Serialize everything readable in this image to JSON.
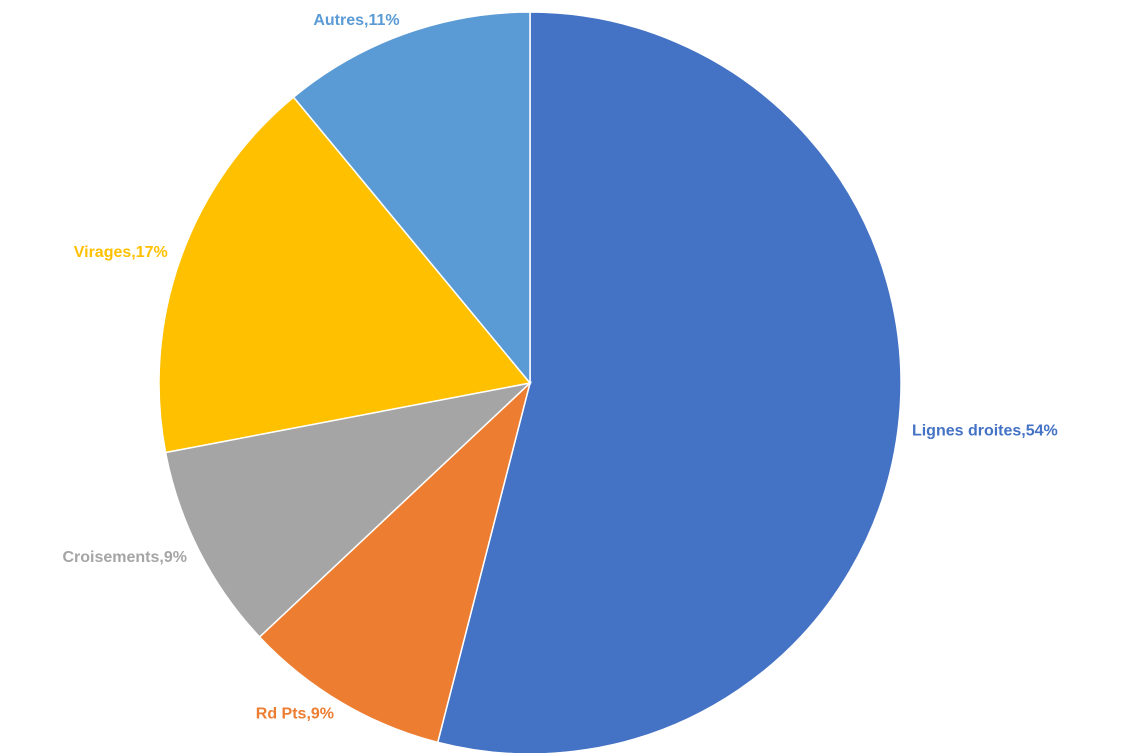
{
  "chart_data": {
    "type": "pie",
    "values": [
      54,
      9,
      9,
      17,
      11
    ],
    "value_labels": [
      "Lignes droites,54%",
      "Rd Pts,9%",
      "Croisements,9%",
      "Virages,17%",
      "Autres,11%"
    ],
    "colors": [
      "#4472c4",
      "#ed7d31",
      "#a5a5a5",
      "#ffc000",
      "#5b9bd5"
    ]
  }
}
